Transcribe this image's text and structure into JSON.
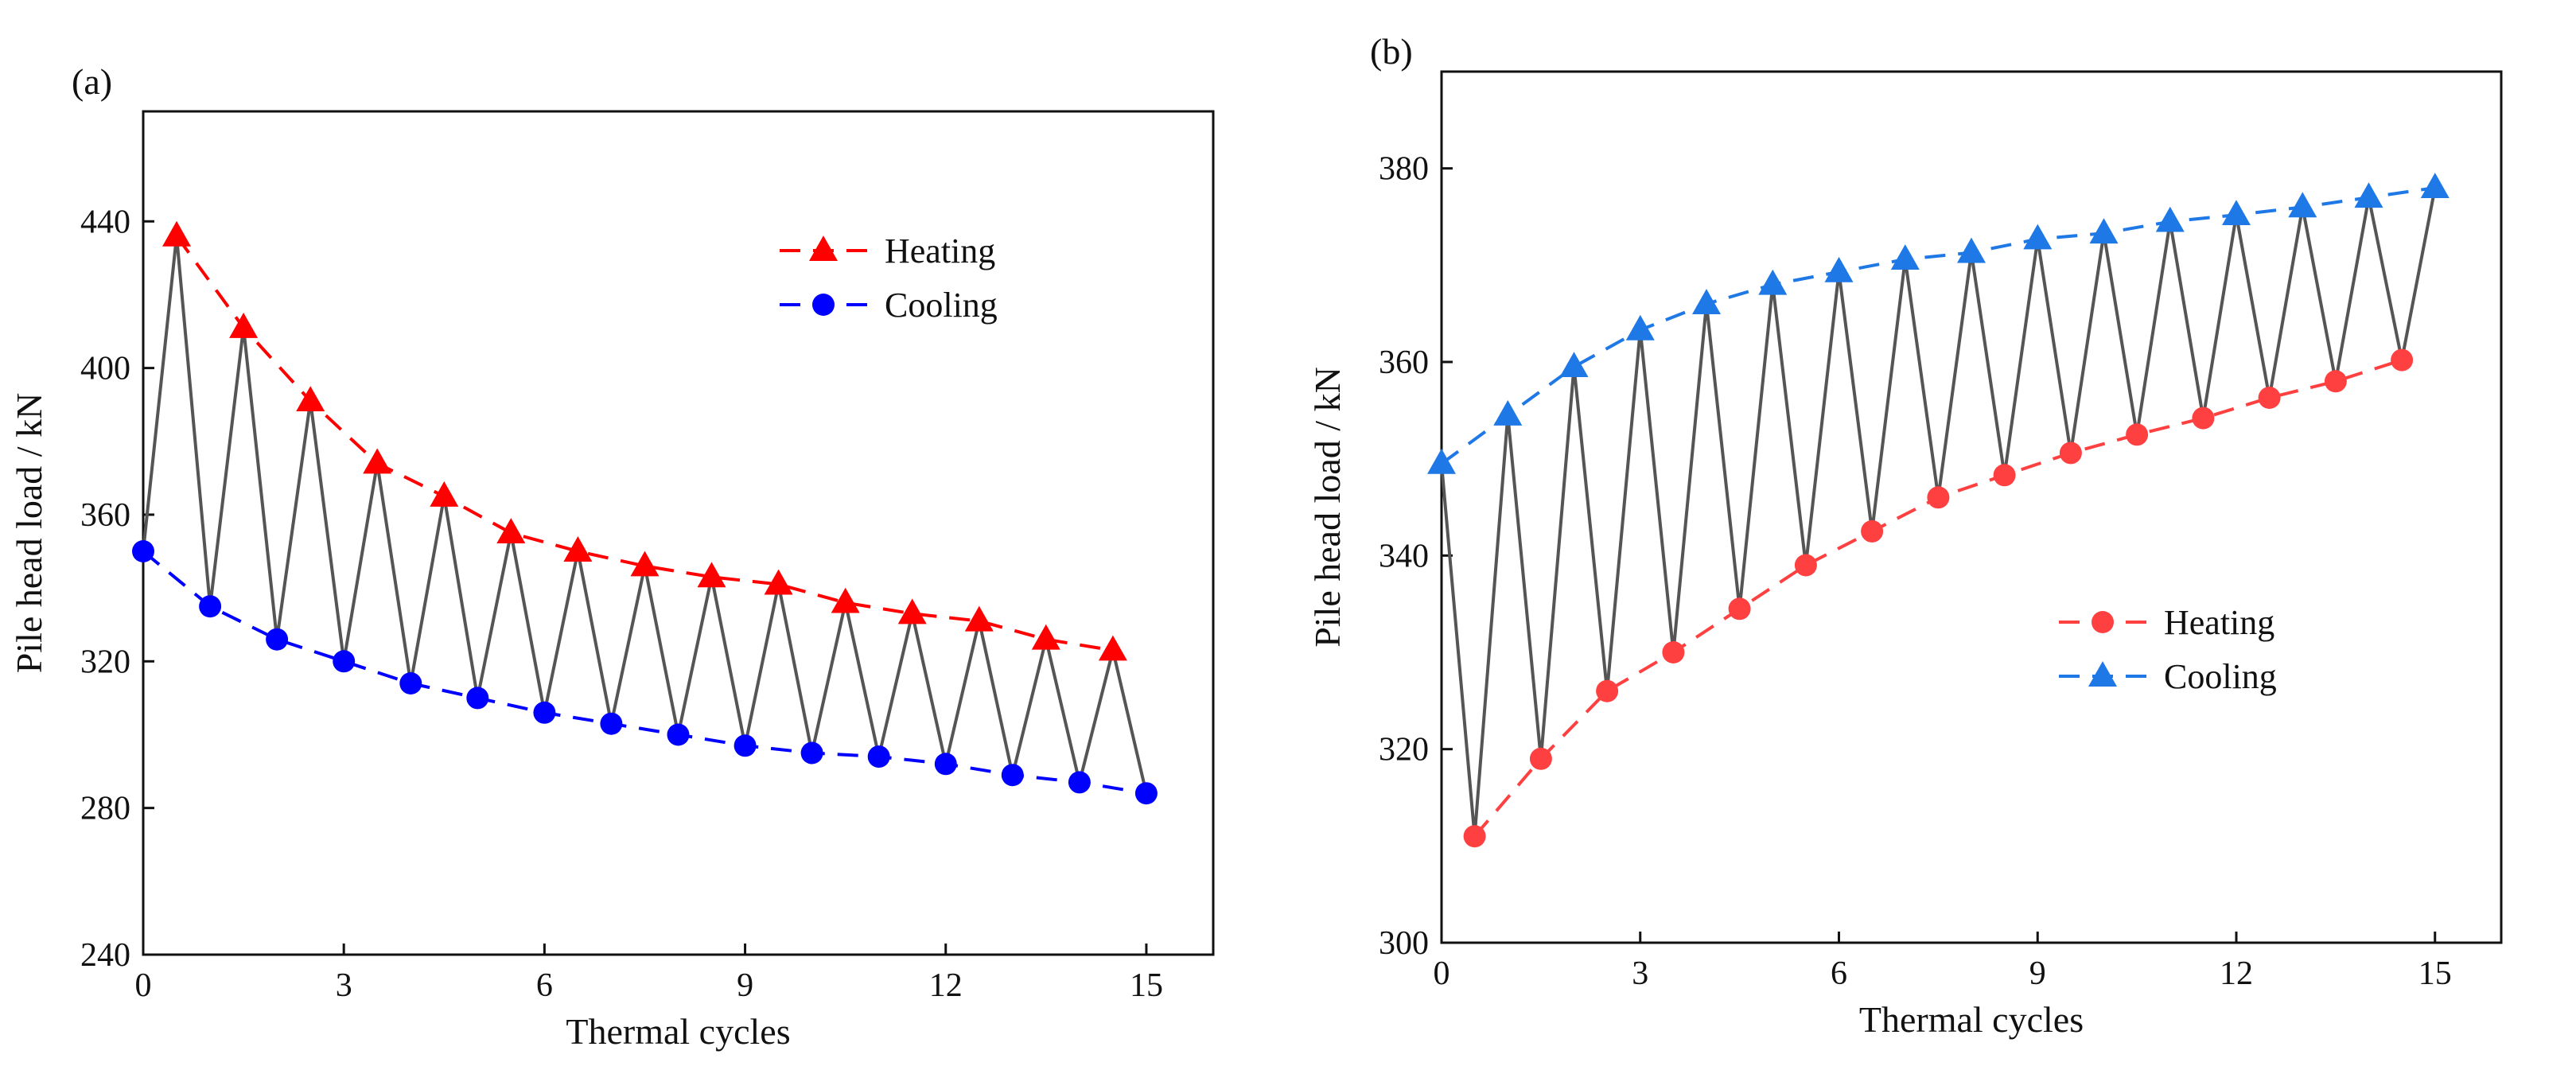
{
  "chart_data": [
    {
      "panel_label": "(a)",
      "type": "line",
      "xlabel": "Thermal cycles",
      "ylabel": "Pile head load / kN",
      "xlim": [
        0,
        16
      ],
      "ylim": [
        240,
        470
      ],
      "x_ticks": [
        0,
        3,
        6,
        9,
        12,
        15
      ],
      "y_ticks": [
        240,
        280,
        320,
        360,
        400,
        440
      ],
      "legend_position": "top-right",
      "series": [
        {
          "name": "Heating",
          "color": "#ff0000",
          "marker": "triangle",
          "x": [
            0.5,
            1.5,
            2.5,
            3.5,
            4.5,
            5.5,
            6.5,
            7.5,
            8.5,
            9.5,
            10.5,
            11.5,
            12.5,
            13.5,
            14.5
          ],
          "y": [
            436,
            411,
            391,
            374,
            365,
            355,
            350,
            346,
            343,
            341,
            336,
            333,
            331,
            326,
            323
          ]
        },
        {
          "name": "Cooling",
          "color": "#0000ff",
          "marker": "circle",
          "x": [
            0,
            1,
            2,
            3,
            4,
            5,
            6,
            7,
            8,
            9,
            10,
            11,
            12,
            13,
            14,
            15
          ],
          "y": [
            350,
            335,
            326,
            320,
            314,
            310,
            306,
            303,
            300,
            297,
            295,
            294,
            292,
            289,
            287,
            284
          ]
        }
      ],
      "cycle_path": {
        "name": "Load path",
        "color": "#555555",
        "x": [
          0,
          0.5,
          1,
          1.5,
          2,
          2.5,
          3,
          3.5,
          4,
          4.5,
          5,
          5.5,
          6,
          6.5,
          7,
          7.5,
          8,
          8.5,
          9,
          9.5,
          10,
          10.5,
          11,
          11.5,
          12,
          12.5,
          13,
          13.5,
          14,
          14.5,
          15
        ],
        "y": [
          350,
          436,
          335,
          411,
          326,
          391,
          320,
          374,
          314,
          365,
          310,
          355,
          306,
          350,
          303,
          346,
          300,
          343,
          297,
          341,
          295,
          336,
          294,
          333,
          292,
          331,
          289,
          326,
          287,
          323,
          284
        ]
      }
    },
    {
      "panel_label": "(b)",
      "type": "line",
      "xlabel": "Thermal cycles",
      "ylabel": "Pile head load / kN",
      "xlim": [
        0,
        16
      ],
      "ylim": [
        300,
        390
      ],
      "x_ticks": [
        0,
        3,
        6,
        9,
        12,
        15
      ],
      "y_ticks": [
        300,
        320,
        340,
        360,
        380
      ],
      "legend_position": "center-right",
      "series": [
        {
          "name": "Heating",
          "color": "#ff4040",
          "marker": "circle",
          "x": [
            0.5,
            1.5,
            2.5,
            3.5,
            4.5,
            5.5,
            6.5,
            7.5,
            8.5,
            9.5,
            10.5,
            11.5,
            12.5,
            13.5,
            14.5
          ],
          "y": [
            311,
            319,
            326,
            330,
            334.5,
            339,
            342.5,
            346,
            348.3,
            350.6,
            352.5,
            354.2,
            356.3,
            358,
            360.2
          ]
        },
        {
          "name": "Cooling",
          "color": "#1e78e6",
          "marker": "triangle",
          "x": [
            0,
            1,
            2,
            3,
            4,
            5,
            6,
            7,
            8,
            9,
            10,
            11,
            12,
            13,
            14,
            15
          ],
          "y": [
            349.5,
            354.5,
            359.5,
            363.3,
            366,
            368,
            369.3,
            370.6,
            371.3,
            372.7,
            373.3,
            374.5,
            375.2,
            376,
            377,
            378
          ]
        }
      ],
      "cycle_path": {
        "name": "Load path",
        "color": "#555555",
        "x": [
          0,
          0.5,
          1,
          1.5,
          2,
          2.5,
          3,
          3.5,
          4,
          4.5,
          5,
          5.5,
          6,
          6.5,
          7,
          7.5,
          8,
          8.5,
          9,
          9.5,
          10,
          10.5,
          11,
          11.5,
          12,
          12.5,
          13,
          13.5,
          14,
          14.5,
          15
        ],
        "y": [
          349.5,
          311,
          354.5,
          319,
          359.5,
          326,
          363.3,
          330,
          366,
          334.5,
          368,
          339,
          369.3,
          342.5,
          370.6,
          346,
          371.3,
          348.3,
          372.7,
          350.6,
          373.3,
          352.5,
          374.5,
          354.2,
          375.2,
          356.3,
          376,
          358,
          377,
          360.2,
          378
        ]
      }
    }
  ]
}
